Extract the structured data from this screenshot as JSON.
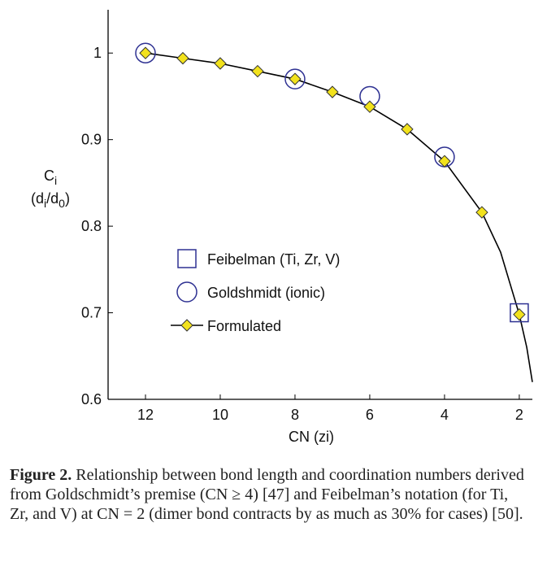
{
  "chart_data": {
    "type": "scatter",
    "xlabel": "CN (zi)",
    "ylabel_parts": [
      [
        "C",
        "i"
      ],
      [
        "(d",
        "i",
        "/d",
        "0",
        ")"
      ]
    ],
    "xlim": [
      13,
      1.65
    ],
    "ylim": [
      0.6,
      1.05
    ],
    "xticks": [
      12,
      10,
      8,
      6,
      4,
      2
    ],
    "yticks": [
      0.6,
      0.7,
      0.8,
      0.9,
      1
    ],
    "legend": "left",
    "series": [
      {
        "name": "Feibelman (Ti, Zr, V)",
        "marker": "square",
        "color": "#2e3192",
        "x": [
          2
        ],
        "values": [
          0.7
        ]
      },
      {
        "name": "Goldshmidt (ionic)",
        "marker": "circle",
        "color": "#2e3192",
        "x": [
          12,
          8,
          6,
          4
        ],
        "values": [
          1.0,
          0.97,
          0.95,
          0.88
        ]
      },
      {
        "name": "Formulated",
        "marker": "diamond",
        "color": "#f2e21c",
        "line": true,
        "x": [
          12,
          11,
          10,
          9,
          8,
          7,
          6,
          5,
          4,
          3,
          2
        ],
        "values": [
          1.0,
          0.994,
          0.988,
          0.979,
          0.97,
          0.955,
          0.938,
          0.912,
          0.875,
          0.816,
          0.698
        ]
      }
    ],
    "curve": {
      "x": [
        12,
        11,
        10,
        9,
        8,
        7,
        6,
        5,
        4,
        3,
        2.5,
        2,
        1.8,
        1.65
      ],
      "values": [
        1.0,
        0.994,
        0.988,
        0.979,
        0.97,
        0.955,
        0.938,
        0.912,
        0.875,
        0.816,
        0.77,
        0.698,
        0.66,
        0.62
      ]
    }
  },
  "caption": {
    "label": "Figure 2.",
    "text": "Relationship between bond length and coordination numbers derived from Goldschmidt’s premise (CN ≥ 4) [47] and Feibelman’s notation (for Ti, Zr, and V) at CN = 2 (dimer bond contracts by as much as 30% for cases) [50]."
  }
}
